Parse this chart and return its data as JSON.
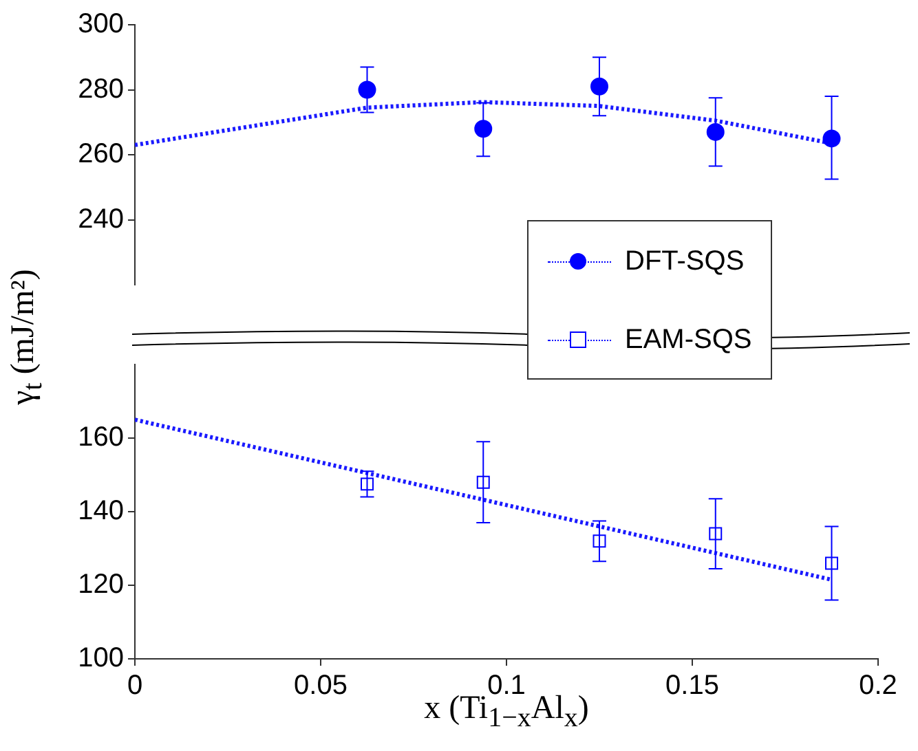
{
  "chart_data": [
    {
      "type": "scatter",
      "ylabel": "γ$_{t}$ (mJ/m²)",
      "xlim": [
        0,
        0.2
      ],
      "ylim": [
        220,
        300
      ],
      "yticks": [
        240,
        260,
        280,
        300
      ],
      "tick_labels": "y",
      "grid": false,
      "legend": "right",
      "series": [
        {
          "name": "DFT-SQS",
          "color": "#0000ff",
          "marker": "circle",
          "x": [
            0.0625,
            0.09375,
            0.125,
            0.15625,
            0.1875
          ],
          "values": [
            280,
            268,
            281,
            267,
            265
          ],
          "errors": [
            [
              273,
              287
            ],
            [
              259.5,
              276
            ],
            [
              272,
              290
            ],
            [
              256.5,
              277.5
            ],
            [
              252.5,
              278
            ]
          ]
        },
        {
          "type": "line",
          "color": "#1a1aff",
          "marker": "none",
          "line_style": "dotted",
          "x": [
            0,
            0.0625,
            0.09375,
            0.125,
            0.15625,
            0.1875
          ],
          "values": [
            263,
            274.5,
            276.2,
            275,
            270.5,
            263.5
          ]
        }
      ]
    },
    {
      "type": "scatter",
      "xlabel": "x (Ti$_{1−x}$Al$_{x}$)",
      "xlim": [
        0,
        0.2
      ],
      "xticks": [
        0,
        0.05,
        0.1,
        0.15,
        0.2
      ],
      "ylim": [
        100,
        180
      ],
      "yticks": [
        100,
        120,
        140,
        160
      ],
      "grid": false,
      "legend": "right",
      "series": [
        {
          "name": "EAM-SQS",
          "color": "#0000ff",
          "marker": "square",
          "x": [
            0.0625,
            0.09375,
            0.125,
            0.15625,
            0.1875
          ],
          "values": [
            147.5,
            148,
            132,
            134,
            126
          ],
          "errors": [
            [
              144,
              151
            ],
            [
              137,
              159
            ],
            [
              126.5,
              137.5
            ],
            [
              124.5,
              143.5
            ],
            [
              116,
              136
            ]
          ]
        },
        {
          "type": "line",
          "color": "#1a1aff",
          "marker": "none",
          "line_style": "dotted",
          "x": [
            0,
            0.1875
          ],
          "values": [
            165,
            121.5
          ]
        }
      ]
    }
  ]
}
